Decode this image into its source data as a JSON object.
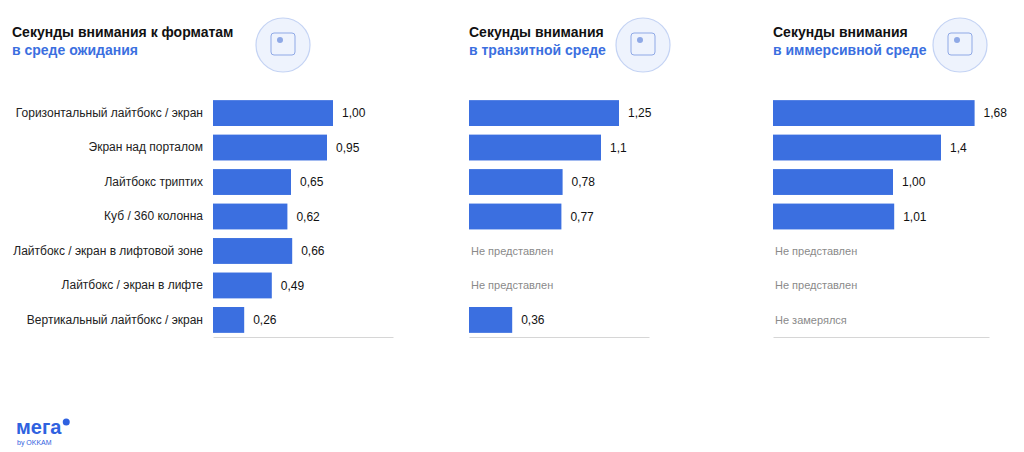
{
  "chart_data": [
    {
      "type": "bar",
      "orientation": "horizontal",
      "title": "Секунды внимания к форматам",
      "subtitle": "в среде ожидания",
      "categories": [
        "Горизонтальный лайтбокс / экран",
        "Экран над порталом",
        "Лайтбокс триптих",
        "Куб / 360 колонна",
        "Лайтбокс / экран в лифтовой зоне",
        "Лайтбокс / экран в лифте",
        "Вертикальный лайтбокс / экран"
      ],
      "values": [
        1.0,
        0.95,
        0.65,
        0.62,
        0.66,
        0.49,
        0.26
      ],
      "value_labels": [
        "1,00",
        "0,95",
        "0,65",
        "0,62",
        "0,66",
        "0,49",
        "0,26"
      ],
      "color": "#3b6fe0",
      "xlim": [
        0,
        1.5
      ],
      "xticks": [],
      "data_labels": true,
      "tick_labels": "y",
      "grid": false
    },
    {
      "type": "bar",
      "orientation": "horizontal",
      "title": "Секунды внимания",
      "subtitle": "в транзитной среде",
      "categories": [
        null,
        null,
        null,
        null,
        null,
        null,
        null
      ],
      "values": [
        1.25,
        1.1,
        0.78,
        0.77,
        null,
        null,
        0.36
      ],
      "value_labels": [
        "1,25",
        "1,1",
        "0,78",
        "0,77",
        "Не представлен",
        "Не представлен",
        "0,36"
      ],
      "color": "#3b6fe0",
      "xlim": [
        0,
        1.5
      ],
      "xticks": [],
      "data_labels": true,
      "tick_labels": false,
      "grid": false
    },
    {
      "type": "bar",
      "orientation": "horizontal",
      "title": "Секунды внимания",
      "subtitle": "в иммерсивной среде",
      "categories": [
        null,
        null,
        null,
        null,
        null,
        null,
        null
      ],
      "values": [
        1.68,
        1.4,
        1.0,
        1.01,
        null,
        null,
        null
      ],
      "value_labels": [
        "1,68",
        "1,4",
        "1,00",
        "1,01",
        "Не представлен",
        "Не представлен",
        "Не замерялся"
      ],
      "color": "#3b6fe0",
      "xlim": [
        0,
        1.8
      ],
      "xticks": [],
      "data_labels": true,
      "tick_labels": false,
      "grid": false
    }
  ],
  "footer": {
    "logo": "мега",
    "byline": "by OKKAM"
  }
}
